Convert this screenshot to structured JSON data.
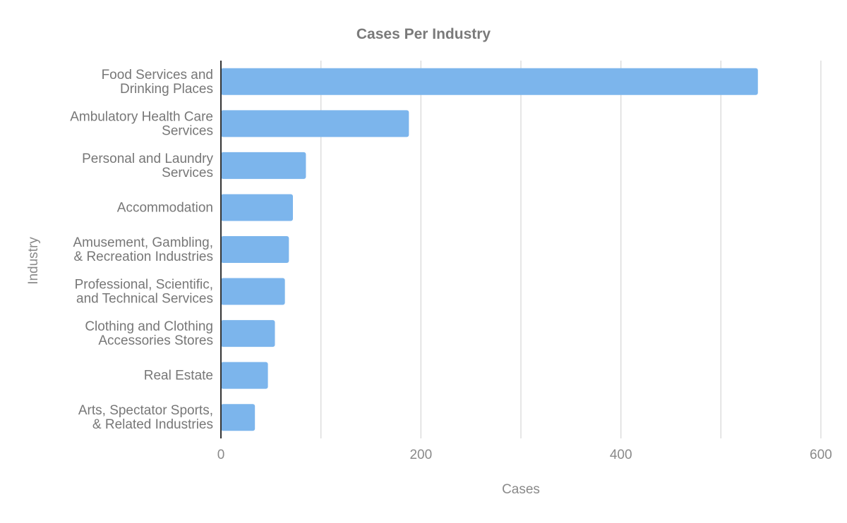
{
  "chart_data": {
    "type": "bar",
    "orientation": "horizontal",
    "title": "Cases Per Industry",
    "xlabel": "Cases",
    "ylabel": "Industry",
    "xlim": [
      0,
      600
    ],
    "x_ticks": [
      0,
      200,
      400,
      600
    ],
    "grid": true,
    "bar_color": "#7cb5ec",
    "categories": [
      [
        "Food Services and",
        "Drinking Places"
      ],
      [
        "Ambulatory Health Care",
        "Services"
      ],
      [
        "Personal and Laundry",
        "Services"
      ],
      [
        "Accommodation"
      ],
      [
        "Amusement, Gambling,",
        "& Recreation Industries"
      ],
      [
        "Professional, Scientific,",
        "and Technical Services"
      ],
      [
        "Clothing and Clothing",
        "Accessories Stores"
      ],
      [
        "Real Estate"
      ],
      [
        "Arts, Spectator Sports,",
        "& Related Industries"
      ]
    ],
    "values": [
      537,
      188,
      85,
      72,
      68,
      64,
      54,
      47,
      34
    ]
  }
}
